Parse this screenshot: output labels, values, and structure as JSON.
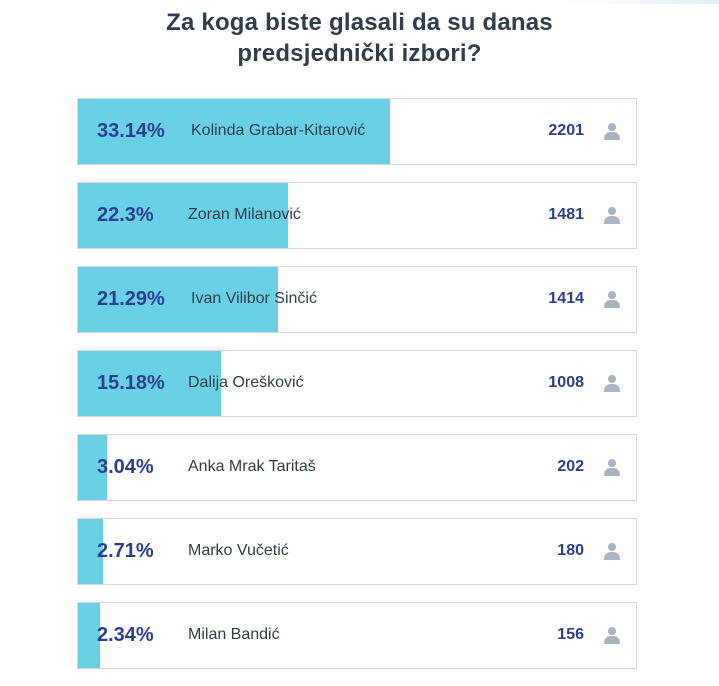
{
  "poll": {
    "title_line1": "Za koga biste glasali da su danas",
    "title_line2": "predsjednički izbori?",
    "bar_color": "#69d1e6",
    "options": [
      {
        "percent": "33.14%",
        "name": "Kolinda Grabar-Kitarović",
        "votes": "2201",
        "share": 0.3314
      },
      {
        "percent": "22.3%",
        "name": "Zoran Milanović",
        "votes": "1481",
        "share": 0.223
      },
      {
        "percent": "21.29%",
        "name": "Ivan Vilibor Sinčić",
        "votes": "1414",
        "share": 0.2129
      },
      {
        "percent": "15.18%",
        "name": "Dalija Orešković",
        "votes": "1008",
        "share": 0.1518
      },
      {
        "percent": "3.04%",
        "name": "Anka Mrak Taritaš",
        "votes": "202",
        "share": 0.0304
      },
      {
        "percent": "2.71%",
        "name": "Marko Vučetić",
        "votes": "180",
        "share": 0.0271
      },
      {
        "percent": "2.34%",
        "name": "Milan Bandić",
        "votes": "156",
        "share": 0.0234
      }
    ],
    "voter_icon": "user-icon"
  }
}
